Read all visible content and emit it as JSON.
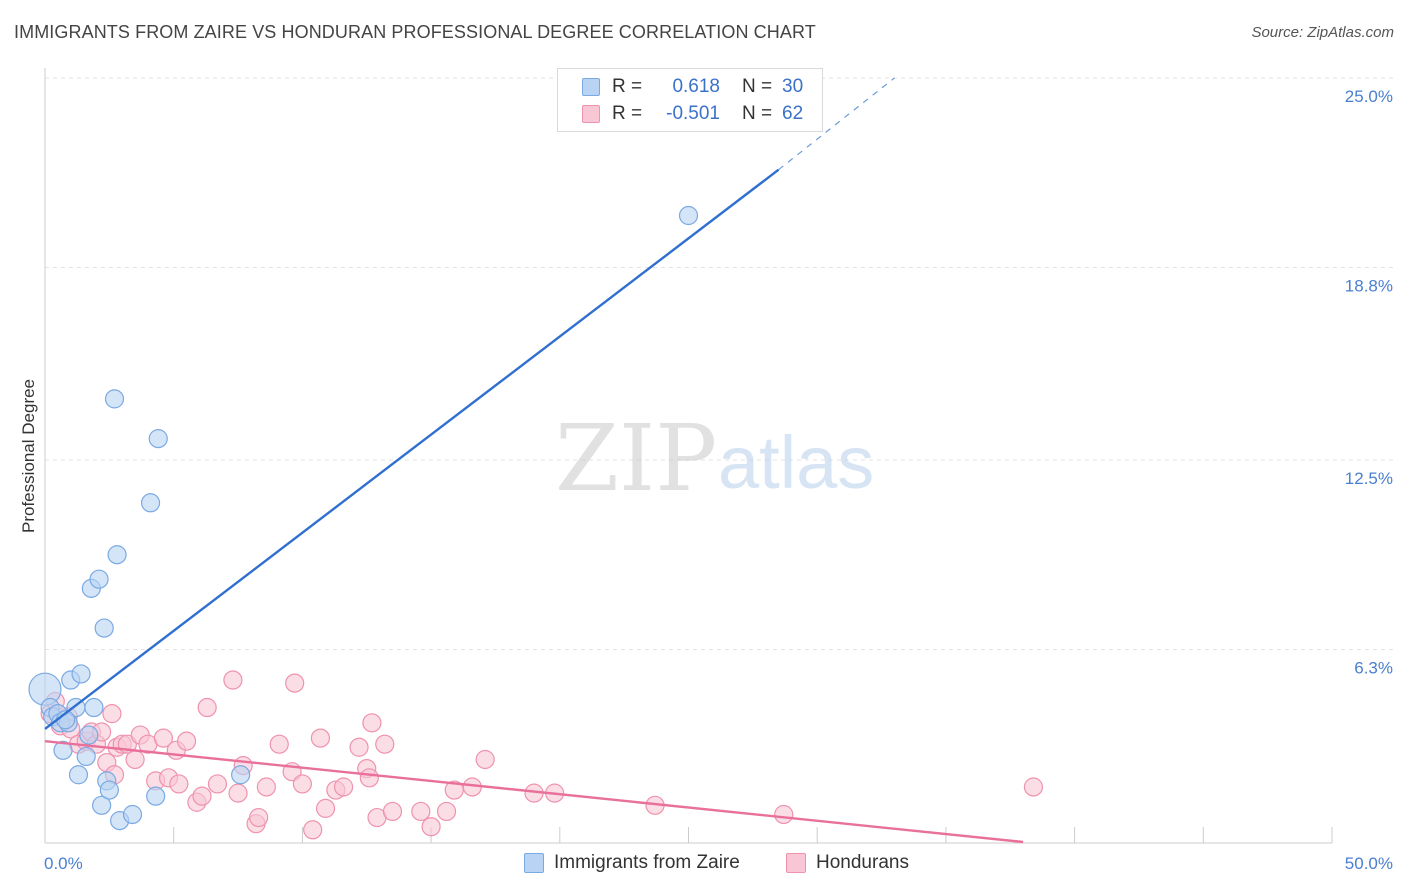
{
  "title": "IMMIGRANTS FROM ZAIRE VS HONDURAN PROFESSIONAL DEGREE CORRELATION CHART",
  "source": "Source: ZipAtlas.com",
  "watermark": {
    "zip": "ZIP",
    "atlas": "atlas"
  },
  "colors": {
    "blue_fill": "#b8d3f3",
    "blue_stroke": "#7aa9e3",
    "blue_line": "#2f6fcf",
    "pink_fill": "#f9c6d5",
    "pink_stroke": "#ef92ad",
    "pink_line": "#e8709a",
    "tick_text": "#4a7fd0",
    "grid": "#e3e3e3"
  },
  "legend": {
    "rows": [
      {
        "r_label": "R =",
        "r_value": "0.618",
        "n_label": "N =",
        "n_value": "30"
      },
      {
        "r_label": "R =",
        "r_value": "-0.501",
        "n_label": "N =",
        "n_value": "62"
      }
    ]
  },
  "bottom_legend": [
    "Immigrants from Zaire",
    "Hondurans"
  ],
  "chart_data": {
    "type": "scatter",
    "xlabel": "",
    "ylabel": "Professional Degree",
    "xlim": [
      0,
      50
    ],
    "ylim": [
      0,
      25
    ],
    "x_tick_labels": [
      "0.0%",
      "50.0%"
    ],
    "y_ticks": [
      6.3,
      12.5,
      18.8,
      25.0
    ],
    "y_tick_labels": [
      "6.3%",
      "12.5%",
      "18.8%",
      "25.0%"
    ],
    "grid": true,
    "series": [
      {
        "name": "Immigrants from Zaire",
        "color": "blue",
        "points": [
          [
            0.0,
            5.0
          ],
          [
            0.2,
            4.4
          ],
          [
            0.3,
            4.1
          ],
          [
            0.5,
            4.2
          ],
          [
            0.6,
            3.9
          ],
          [
            0.7,
            3.0
          ],
          [
            0.9,
            3.9
          ],
          [
            1.0,
            5.3
          ],
          [
            1.2,
            4.4
          ],
          [
            1.3,
            2.2
          ],
          [
            1.4,
            5.5
          ],
          [
            1.6,
            2.8
          ],
          [
            1.7,
            3.5
          ],
          [
            1.8,
            8.3
          ],
          [
            1.9,
            4.4
          ],
          [
            2.1,
            8.6
          ],
          [
            2.2,
            1.2
          ],
          [
            2.3,
            7.0
          ],
          [
            2.4,
            2.0
          ],
          [
            2.5,
            1.7
          ],
          [
            2.7,
            14.5
          ],
          [
            2.8,
            9.4
          ],
          [
            2.9,
            0.7
          ],
          [
            3.4,
            0.9
          ],
          [
            4.1,
            11.1
          ],
          [
            4.3,
            1.5
          ],
          [
            4.4,
            13.2
          ],
          [
            7.6,
            2.2
          ],
          [
            25.0,
            20.5
          ],
          [
            0.8,
            4.0
          ]
        ],
        "trend": {
          "x": [
            0.0,
            28.5
          ],
          "y": [
            3.7,
            22.0
          ],
          "dashed_to": [
            33.0,
            25.0
          ]
        }
      },
      {
        "name": "Hondurans",
        "color": "pink",
        "points": [
          [
            0.2,
            4.2
          ],
          [
            0.4,
            4.6
          ],
          [
            0.6,
            3.8
          ],
          [
            0.9,
            4.1
          ],
          [
            1.0,
            3.7
          ],
          [
            1.3,
            3.2
          ],
          [
            1.6,
            3.3
          ],
          [
            1.8,
            3.6
          ],
          [
            2.0,
            3.2
          ],
          [
            2.2,
            3.6
          ],
          [
            2.4,
            2.6
          ],
          [
            2.6,
            4.2
          ],
          [
            2.8,
            3.1
          ],
          [
            3.0,
            3.2
          ],
          [
            3.2,
            3.2
          ],
          [
            3.5,
            2.7
          ],
          [
            3.7,
            3.5
          ],
          [
            4.0,
            3.2
          ],
          [
            4.3,
            2.0
          ],
          [
            4.6,
            3.4
          ],
          [
            4.8,
            2.1
          ],
          [
            5.1,
            3.0
          ],
          [
            5.2,
            1.9
          ],
          [
            5.5,
            3.3
          ],
          [
            5.9,
            1.3
          ],
          [
            6.1,
            1.5
          ],
          [
            6.3,
            4.4
          ],
          [
            6.7,
            1.9
          ],
          [
            7.3,
            5.3
          ],
          [
            7.5,
            1.6
          ],
          [
            7.7,
            2.5
          ],
          [
            8.2,
            0.6
          ],
          [
            8.3,
            0.8
          ],
          [
            8.6,
            1.8
          ],
          [
            9.1,
            3.2
          ],
          [
            9.6,
            2.3
          ],
          [
            9.7,
            5.2
          ],
          [
            10.0,
            1.9
          ],
          [
            10.4,
            0.4
          ],
          [
            10.7,
            3.4
          ],
          [
            10.9,
            1.1
          ],
          [
            11.3,
            1.7
          ],
          [
            11.6,
            1.8
          ],
          [
            12.2,
            3.1
          ],
          [
            12.5,
            2.4
          ],
          [
            12.6,
            2.1
          ],
          [
            12.7,
            3.9
          ],
          [
            12.9,
            0.8
          ],
          [
            13.2,
            3.2
          ],
          [
            13.5,
            1.0
          ],
          [
            14.6,
            1.0
          ],
          [
            15.0,
            0.5
          ],
          [
            15.6,
            1.0
          ],
          [
            15.9,
            1.7
          ],
          [
            16.6,
            1.8
          ],
          [
            17.1,
            2.7
          ],
          [
            19.0,
            1.6
          ],
          [
            19.8,
            1.6
          ],
          [
            23.7,
            1.2
          ],
          [
            28.7,
            0.9
          ],
          [
            38.4,
            1.8
          ],
          [
            2.7,
            2.2
          ]
        ],
        "trend": {
          "x": [
            0.0,
            38.0
          ],
          "y": [
            3.3,
            0.0
          ]
        }
      }
    ]
  }
}
